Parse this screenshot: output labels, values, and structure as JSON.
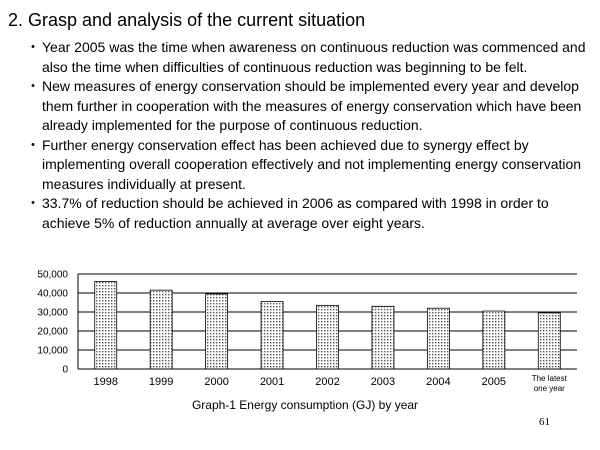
{
  "slide": {
    "title": "2. Grasp and analysis of the current situation",
    "bullet_mark": "・",
    "bullets": [
      "Year 2005 was the time when awareness on continuous reduction was commenced and also the time when difficulties of continuous reduction was beginning to be felt.",
      "New measures of energy conservation should be implemented every year and develop them further in cooperation with the measures of energy conservation which have been already implemented for the purpose of continuous reduction.",
      "Further energy conservation effect has been achieved due to synergy effect by implementing overall cooperation effectively and not implementing energy conservation measures individually at present.",
      "33.7% of reduction should be achieved in 2006 as compared with 1998 in order to achieve 5% of reduction annually at average over eight years."
    ],
    "page_number": "61"
  },
  "chart_data": {
    "type": "bar",
    "title": "Graph-1 Energy consumption (GJ) by year",
    "xlabel": "",
    "ylabel": "",
    "categories": [
      "1998",
      "1999",
      "2000",
      "2001",
      "2002",
      "2003",
      "2004",
      "2005",
      "The latest one year"
    ],
    "values": [
      46000,
      41500,
      39500,
      35500,
      33500,
      33000,
      32000,
      30500,
      29500
    ],
    "ylim": [
      0,
      50000
    ],
    "yticks": [
      0,
      10000,
      20000,
      30000,
      40000,
      50000
    ],
    "ytick_labels": [
      "0",
      "10,000",
      "20,000",
      "30,000",
      "40,000",
      "50,000"
    ],
    "grid": true,
    "bar_fill": "dotted-gray",
    "colors": {
      "bar_dot": "#555555",
      "grid": "#000000",
      "axis": "#000000"
    }
  }
}
